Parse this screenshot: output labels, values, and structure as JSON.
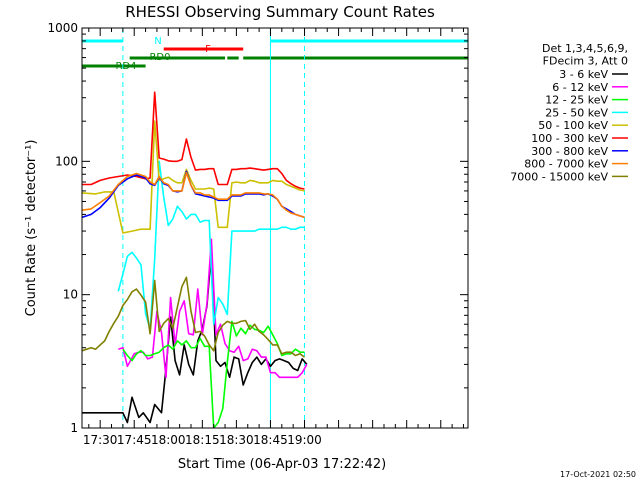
{
  "chart_data": {
    "type": "line",
    "title": "RHESSI Observing Summary Count Rates",
    "xlabel": "Start Time (06-Apr-03 17:22:42)",
    "ylabel": "Count Rate (s⁻¹ detector⁻¹)",
    "yscale": "log",
    "ylim": [
      1,
      1000
    ],
    "xlim_minutes": [
      -8,
      162
    ],
    "x_ticks": [
      {
        "label": "17:30",
        "minutes": 0
      },
      {
        "label": "17:45",
        "minutes": 15
      },
      {
        "label": "18:00",
        "minutes": 30
      },
      {
        "label": "18:15",
        "minutes": 45
      },
      {
        "label": "18:30",
        "minutes": 60
      },
      {
        "label": "18:45",
        "minutes": 75
      },
      {
        "label": "19:00",
        "minutes": 90
      }
    ],
    "y_ticks": [
      {
        "label": "1",
        "value": 1
      },
      {
        "label": "10",
        "value": 10
      },
      {
        "label": "100",
        "value": 100
      },
      {
        "label": "1000",
        "value": 1000
      }
    ],
    "legend_header": [
      "Det 1,3,4,5,6,9,",
      "FDecim 3, Att 0"
    ],
    "legend_position": "right",
    "x_unit_minutes_from": "17:30",
    "series": [
      {
        "name": "3 - 6 keV",
        "color": "#000000",
        "x": [
          -8,
          10,
          12,
          14,
          17,
          19,
          22,
          24,
          27,
          29,
          31,
          33,
          35,
          37,
          39,
          41,
          43,
          45,
          47,
          49,
          51,
          53,
          55,
          57,
          59,
          61,
          63,
          65,
          67,
          69,
          71,
          73,
          75,
          77,
          79,
          81,
          83,
          85,
          87,
          89,
          91
        ],
        "y": [
          1.3,
          1.3,
          1.1,
          1.7,
          1.2,
          1.3,
          1.1,
          1.5,
          1.3,
          2.8,
          6.8,
          3.2,
          2.5,
          4.2,
          3.0,
          2.5,
          4.5,
          5.5,
          8.2,
          21,
          3.2,
          2.9,
          3.1,
          2.4,
          3.4,
          3.3,
          2.1,
          2.6,
          3.1,
          3.4,
          3.0,
          3.3,
          2.9,
          3.2,
          3.3,
          3.2,
          3.1,
          2.8,
          2.7,
          3.3,
          3.0
        ]
      },
      {
        "name": "6 - 12 keV",
        "color": "#ff00ff",
        "x": [
          8,
          10,
          12,
          15,
          17,
          19,
          21,
          23,
          25,
          27,
          29,
          31,
          33,
          35,
          37,
          39,
          41,
          43,
          45,
          47,
          49,
          51,
          53,
          55,
          57,
          59,
          61,
          63,
          65,
          67,
          69,
          71,
          73,
          75,
          77,
          79,
          81,
          83,
          85,
          87,
          89,
          91
        ],
        "y": [
          3.9,
          4.0,
          2.9,
          3.6,
          3.7,
          3.7,
          3.3,
          3.4,
          7.5,
          5.2,
          2.4,
          9.5,
          4.2,
          7.5,
          9.0,
          5.1,
          5.0,
          11.0,
          5.0,
          8.5,
          26,
          5.0,
          6.0,
          4.3,
          3.8,
          3.7,
          4.1,
          3.2,
          3.3,
          3.9,
          3.8,
          3.4,
          3.4,
          2.6,
          2.6,
          2.4,
          2.4,
          2.4,
          2.4,
          2.4,
          2.6,
          3.0
        ]
      },
      {
        "name": "12 - 25 keV",
        "color": "#00ff00",
        "x": [
          10,
          12,
          14,
          16,
          18,
          20,
          22,
          24,
          26,
          28,
          30,
          32,
          34,
          36,
          38,
          40,
          42,
          44,
          46,
          48,
          50,
          52,
          54,
          56,
          58,
          60,
          62,
          64,
          66,
          68,
          70,
          72,
          74,
          76,
          78,
          80,
          82,
          84,
          86,
          88,
          90
        ],
        "y": [
          3.9,
          3.5,
          3.2,
          3.6,
          3.8,
          3.5,
          3.5,
          3.6,
          3.7,
          4.0,
          4.2,
          3.9,
          4.5,
          4.2,
          4.5,
          4.0,
          4.0,
          4.7,
          4.1,
          4.1,
          1.0,
          1.1,
          1.4,
          3.1,
          6.3,
          4.9,
          5.6,
          5.1,
          5.9,
          5.5,
          5.4,
          5.2,
          5.8,
          5.0,
          4.3,
          3.5,
          3.6,
          3.6,
          3.9,
          3.7,
          3.7
        ]
      },
      {
        "name": "25 - 50 keV",
        "color": "#00ffff",
        "x": [
          8,
          10,
          12,
          14,
          16,
          18,
          20,
          22,
          24,
          26,
          28,
          30,
          32,
          34,
          36,
          38,
          40,
          42,
          44,
          46,
          48,
          50,
          52,
          54,
          56,
          58,
          60,
          62,
          64,
          66,
          68,
          70,
          72,
          74,
          76,
          78,
          80,
          82,
          84,
          86,
          88,
          90
        ],
        "y": [
          10.6,
          14.3,
          19.4,
          20.8,
          18.8,
          16.7,
          7.2,
          5.5,
          18.5,
          100,
          54,
          33,
          37,
          46,
          42,
          37,
          40,
          40,
          35,
          36,
          36,
          6.0,
          9.5,
          8.5,
          7.1,
          30,
          30,
          30,
          30,
          30,
          30,
          31,
          31,
          31,
          31,
          31,
          32,
          32,
          31,
          31,
          32,
          32
        ]
      },
      {
        "name": "50 - 100 keV",
        "color": "#ccc000",
        "x": [
          -8,
          -2,
          2,
          6,
          10,
          14,
          18,
          20,
          22,
          24,
          26,
          28,
          30,
          32,
          34,
          36,
          38,
          40,
          42,
          44,
          46,
          48,
          50,
          52,
          54,
          56,
          58,
          60,
          62,
          64,
          66,
          68,
          70,
          72,
          74,
          76,
          78,
          80,
          82,
          84,
          86,
          88,
          90
        ],
        "y": [
          58,
          57,
          59,
          59,
          29,
          30,
          31,
          31,
          31,
          200,
          72,
          74,
          76,
          72,
          69,
          69,
          87,
          72,
          62,
          62,
          62,
          63,
          62,
          32,
          32,
          32,
          69,
          70,
          69,
          69,
          72,
          71,
          69,
          69,
          69,
          72,
          71,
          71,
          67,
          65,
          63,
          61,
          60
        ]
      },
      {
        "name": "100 - 300 keV",
        "color": "#ff0000",
        "x": [
          -8,
          -4,
          0,
          4,
          8,
          12,
          16,
          20,
          22,
          24,
          26,
          28,
          30,
          32,
          34,
          36,
          38,
          40,
          42,
          44,
          46,
          48,
          50,
          52,
          54,
          56,
          58,
          60,
          62,
          64,
          66,
          68,
          70,
          72,
          74,
          76,
          78,
          80,
          82,
          84,
          86,
          88,
          90
        ],
        "y": [
          67,
          67,
          72,
          75,
          77,
          79,
          77,
          74,
          75,
          330,
          106,
          104,
          101,
          100,
          100,
          103,
          147,
          107,
          86,
          87,
          87,
          88,
          88,
          67,
          67,
          67,
          87,
          87,
          88,
          88,
          89,
          88,
          87,
          86,
          87,
          88,
          88,
          81,
          72,
          68,
          65,
          63,
          62
        ]
      },
      {
        "name": "300 - 800 keV",
        "color": "#0000ff",
        "x": [
          -8,
          -4,
          0,
          4,
          8,
          12,
          16,
          20,
          22,
          24,
          26,
          28,
          30,
          32,
          34,
          36,
          38,
          40,
          42,
          44,
          46,
          48,
          50,
          52,
          54,
          56,
          58,
          60,
          62,
          64,
          66,
          68,
          70,
          72,
          74,
          76,
          78,
          80,
          82,
          84,
          86,
          88,
          90
        ],
        "y": [
          38,
          40,
          45,
          53,
          66,
          74,
          79,
          75,
          68,
          66,
          76,
          68,
          66,
          60,
          59,
          60,
          84,
          66,
          57,
          56,
          55,
          54,
          53,
          51,
          51,
          51,
          55,
          55,
          55,
          57,
          57,
          57,
          57,
          56,
          57,
          55,
          52,
          46,
          44,
          42,
          40,
          39,
          38
        ]
      },
      {
        "name": "800 - 7000 keV",
        "color": "#ff8000",
        "x": [
          -8,
          -4,
          0,
          4,
          8,
          12,
          16,
          20,
          22,
          24,
          26,
          28,
          30,
          32,
          34,
          36,
          38,
          40,
          42,
          44,
          46,
          48,
          50,
          52,
          54,
          56,
          58,
          60,
          62,
          64,
          66,
          68,
          70,
          72,
          74,
          76,
          78,
          80,
          82,
          84,
          86,
          88,
          90
        ],
        "y": [
          43,
          44,
          49,
          55,
          67,
          77,
          81,
          77,
          70,
          67,
          77,
          69,
          67,
          60,
          60,
          60,
          82,
          66,
          58,
          58,
          56,
          56,
          54,
          52,
          52,
          52,
          56,
          56,
          56,
          58,
          58,
          58,
          58,
          57,
          57,
          56,
          52,
          46,
          43,
          41,
          40,
          39,
          38
        ]
      },
      {
        "name": "7000 - 15000 keV",
        "color": "#808000",
        "x": [
          -8,
          -4,
          -2,
          0,
          2,
          4,
          6,
          8,
          10,
          12,
          14,
          16,
          18,
          20,
          22,
          24,
          26,
          28,
          30,
          32,
          34,
          36,
          38,
          40,
          42,
          44,
          46,
          48,
          50,
          52,
          54,
          56,
          58,
          60,
          62,
          64,
          66,
          68,
          70,
          72,
          74,
          76,
          78,
          80,
          82,
          84,
          86,
          88,
          90
        ],
        "y": [
          3.8,
          4.0,
          3.9,
          4.2,
          4.5,
          5.3,
          6.1,
          6.9,
          8.3,
          9.2,
          10.5,
          11.0,
          9.9,
          8.8,
          5.1,
          12.8,
          5.3,
          6.1,
          6.6,
          5.6,
          8.1,
          11.5,
          13.5,
          7.5,
          5.2,
          5.3,
          4.9,
          4.2,
          3.8,
          5.2,
          5.9,
          6.3,
          6.1,
          6.1,
          6.3,
          6.4,
          5.5,
          6.0,
          5.3,
          5.0,
          4.6,
          4.2,
          4.2,
          3.6,
          3.7,
          3.7,
          3.5,
          3.6,
          3.4
        ]
      }
    ],
    "state_bars": [
      {
        "label": "N",
        "color": "#00ffff",
        "segments": [
          [
            -8,
            10
          ],
          [
            75,
            162
          ]
        ],
        "level": 0
      },
      {
        "label": "F",
        "color": "#ff0000",
        "segments": [
          [
            28,
            63
          ]
        ],
        "level": 1
      },
      {
        "label": "RD0",
        "color": "#008000",
        "segments": [
          [
            13,
            55
          ],
          [
            56,
            61
          ],
          [
            63,
            162
          ]
        ],
        "level": 2
      },
      {
        "label": "RD4",
        "color": "#008000",
        "segments": [
          [
            -8,
            20
          ]
        ],
        "level": 3
      }
    ],
    "vertical_markers": [
      {
        "minutes": -8,
        "style": "solid",
        "color": "#00ffff"
      },
      {
        "minutes": 10,
        "style": "dashed",
        "color": "#00ffff"
      },
      {
        "minutes": 75,
        "style": "solid",
        "color": "#00ffff"
      },
      {
        "minutes": 90,
        "style": "dashed",
        "color": "#00ffff"
      }
    ],
    "footer_date": "17-Oct-2021 02:50"
  }
}
